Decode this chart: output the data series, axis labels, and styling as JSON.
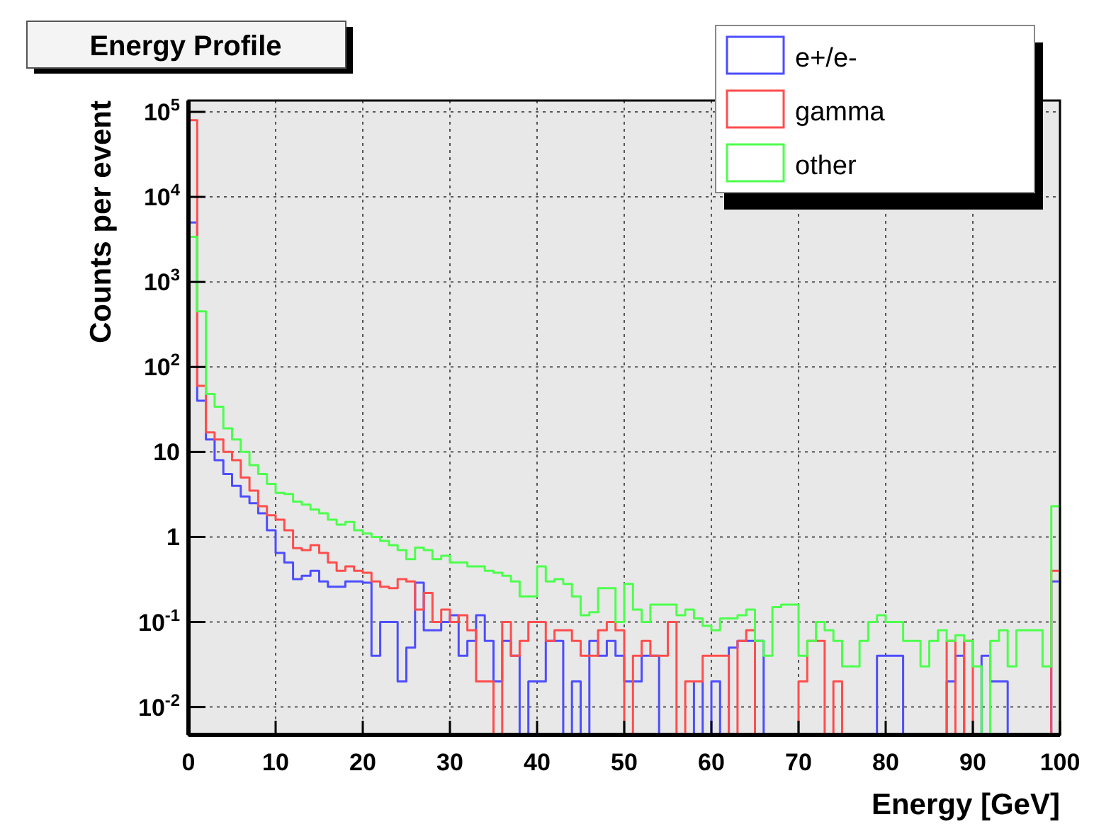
{
  "chart_data": {
    "type": "histogram",
    "title": "Energy Profile",
    "xlabel": "Energy [GeV]",
    "ylabel": "Counts per event",
    "bins": [
      0,
      1,
      2,
      3,
      4,
      5,
      6,
      7,
      8,
      9,
      10,
      11,
      12,
      13,
      14,
      15,
      16,
      17,
      18,
      19,
      20,
      21,
      22,
      23,
      24,
      25,
      26,
      27,
      28,
      29,
      30,
      31,
      32,
      33,
      34,
      35,
      36,
      37,
      38,
      39,
      40,
      41,
      42,
      43,
      44,
      45,
      46,
      47,
      48,
      49,
      50,
      51,
      52,
      53,
      54,
      55,
      56,
      57,
      58,
      59,
      60,
      61,
      62,
      63,
      64,
      65,
      66,
      67,
      68,
      69,
      70,
      71,
      72,
      73,
      74,
      75,
      76,
      77,
      78,
      79,
      80,
      81,
      82,
      83,
      84,
      85,
      86,
      87,
      88,
      89,
      90,
      91,
      92,
      93,
      94,
      95,
      96,
      97,
      98,
      99,
      100
    ],
    "series": [
      {
        "name": "e+/e-",
        "color": "#4d4dff",
        "values": [
          5000,
          40,
          14,
          8,
          5.5,
          4,
          3,
          2.5,
          1.9,
          1.2,
          0.65,
          0.5,
          0.32,
          0.35,
          0.4,
          0.3,
          0.26,
          0.26,
          0.3,
          0.3,
          0.29,
          0.04,
          0.1,
          0.1,
          0.02,
          0.05,
          0.29,
          0.08,
          0.08,
          0.1,
          0.12,
          0.04,
          0.06,
          0.12,
          0.06,
          0.02,
          0.06,
          0.04,
          null,
          0.02,
          0.02,
          0.06,
          0.06,
          null,
          0.02,
          null,
          0.06,
          0.04,
          0.06,
          0.04,
          0.02,
          0.02,
          0.04,
          0.04,
          null,
          null,
          null,
          null,
          0.02,
          null,
          0.02,
          null,
          0.05,
          0.06,
          0.06,
          0.06,
          null,
          null,
          null,
          null,
          null,
          null,
          null,
          null,
          null,
          null,
          null,
          null,
          null,
          0.04,
          0.04,
          0.04,
          null,
          null,
          null,
          null,
          null,
          0.02,
          0.04,
          null,
          null,
          0.04,
          0.02,
          0.02,
          null,
          null,
          null,
          null,
          null,
          0.3
        ]
      },
      {
        "name": "gamma",
        "color": "#ff4d4d",
        "values": [
          80000,
          60,
          17,
          14,
          10,
          8,
          5,
          3.5,
          2.3,
          1.8,
          1.6,
          1.2,
          0.74,
          0.7,
          0.8,
          0.65,
          0.5,
          0.4,
          0.45,
          0.4,
          0.38,
          0.3,
          0.26,
          0.25,
          0.32,
          0.3,
          0.14,
          0.22,
          0.1,
          0.14,
          0.1,
          0.12,
          0.08,
          0.02,
          0.02,
          null,
          0.1,
          0.04,
          0.06,
          0.1,
          0.1,
          0.06,
          0.08,
          0.08,
          0.06,
          0.04,
          0.04,
          0.08,
          0.1,
          0.08,
          null,
          0.04,
          0.06,
          0.04,
          0.04,
          0.1,
          null,
          0.02,
          0.02,
          0.04,
          0.04,
          0.04,
          null,
          0.06,
          0.08,
          null,
          null,
          null,
          null,
          null,
          0.02,
          0.06,
          0.06,
          null,
          0.02,
          null,
          null,
          null,
          null,
          null,
          null,
          null,
          null,
          null,
          null,
          null,
          null,
          0.06,
          null,
          0.06,
          null,
          null,
          null,
          null,
          null,
          null,
          null,
          null,
          null,
          0.4
        ]
      },
      {
        "name": "other",
        "color": "#4dff4d",
        "values": [
          3400,
          450,
          48,
          34,
          19,
          14,
          10,
          7,
          5.5,
          4.2,
          3.3,
          3.2,
          2.6,
          2.4,
          2.1,
          1.9,
          1.6,
          1.4,
          1.5,
          1.2,
          1.1,
          1,
          0.9,
          0.8,
          0.7,
          0.55,
          0.75,
          0.7,
          0.55,
          0.6,
          0.5,
          0.5,
          0.45,
          0.45,
          0.4,
          0.38,
          0.35,
          0.3,
          0.2,
          0.2,
          0.45,
          0.3,
          0.32,
          0.28,
          0.2,
          0.12,
          0.13,
          0.25,
          0.25,
          0.1,
          0.28,
          0.14,
          0.1,
          0.16,
          0.16,
          0.16,
          0.12,
          0.14,
          0.11,
          0.09,
          0.08,
          0.11,
          0.11,
          0.12,
          0.14,
          0.06,
          0.04,
          0.15,
          0.16,
          0.16,
          0.04,
          0.06,
          0.1,
          0.08,
          0.06,
          0.03,
          0.03,
          0.06,
          0.1,
          0.12,
          0.1,
          0.1,
          0.06,
          0.06,
          0.03,
          0.06,
          0.08,
          0.06,
          0.07,
          0.06,
          0.03,
          null,
          0.06,
          0.08,
          0.03,
          0.08,
          0.08,
          0.08,
          0.03,
          2.3
        ]
      }
    ],
    "xlim": [
      0,
      100
    ],
    "xticks": [
      0,
      10,
      20,
      30,
      40,
      50,
      60,
      70,
      80,
      90,
      100
    ],
    "ylim": [
      0.0047,
      136000
    ],
    "log": "y",
    "yticks": [
      {
        "value": 0.01,
        "label": "10$^{-2}$"
      },
      {
        "value": 0.1,
        "label": "10$^{-1}$"
      },
      1,
      10,
      {
        "value": 100,
        "label": "10$^{2}$"
      },
      {
        "value": 1000,
        "label": "10$^{3}$"
      },
      {
        "value": 10000,
        "label": "10$^{4}$"
      },
      {
        "value": 100000,
        "label": "10$^{5}$"
      }
    ],
    "grid": true,
    "legend": "top right"
  }
}
